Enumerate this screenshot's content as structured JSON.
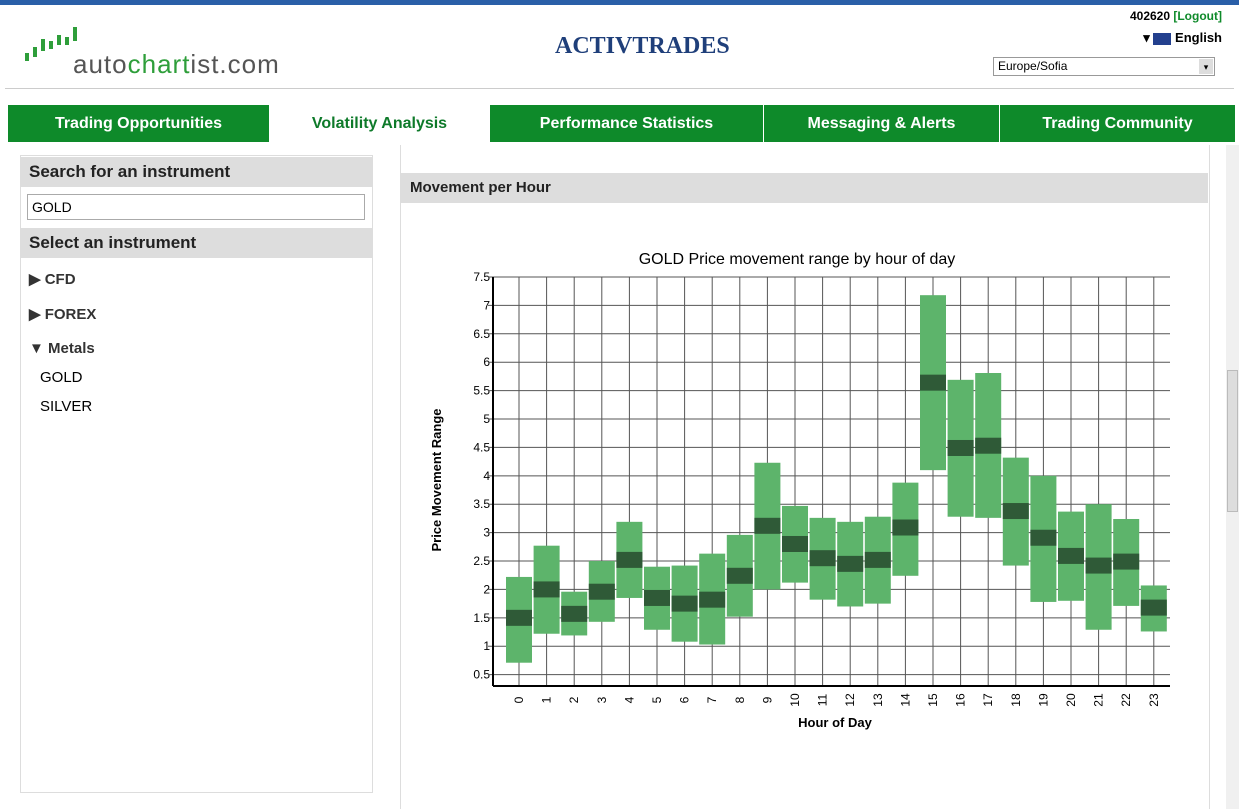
{
  "header": {
    "logo_parts": [
      "auto",
      "chart",
      "ist.com"
    ],
    "brand": "ACTIVTRADES",
    "account": "402620",
    "logout": "[Logout]",
    "language": "English",
    "timezone": "Europe/Sofia"
  },
  "tabs": [
    "Trading Opportunities",
    "Volatility Analysis",
    "Performance Statistics",
    "Messaging & Alerts",
    "Trading Community"
  ],
  "sidebar": {
    "search_title": "Search for an instrument",
    "search_value": "GOLD",
    "select_title": "Select an instrument",
    "groups": [
      "CFD",
      "FOREX",
      "Metals"
    ],
    "items": [
      "GOLD",
      "SILVER"
    ]
  },
  "panel_title": "Movement per Hour",
  "chart_data": {
    "type": "range",
    "title": "GOLD Price movement range by hour of day",
    "xlabel": "Hour of Day",
    "ylabel": "Price Movement Range",
    "categories": [
      "0",
      "1",
      "2",
      "3",
      "4",
      "5",
      "6",
      "7",
      "8",
      "9",
      "10",
      "11",
      "12",
      "13",
      "14",
      "15",
      "16",
      "17",
      "18",
      "19",
      "20",
      "21",
      "22",
      "23"
    ],
    "series": [
      {
        "name": "low",
        "color": "#5db46b",
        "values": [
          0.71,
          1.22,
          1.19,
          1.43,
          1.85,
          1.29,
          1.08,
          1.03,
          1.52,
          2.0,
          2.12,
          1.82,
          1.7,
          1.75,
          2.24,
          4.1,
          3.28,
          3.26,
          2.42,
          1.78,
          1.8,
          1.29,
          1.71,
          1.26
        ]
      },
      {
        "name": "high",
        "color": "#5db46b",
        "values": [
          2.22,
          2.77,
          1.96,
          2.5,
          3.19,
          2.4,
          2.42,
          2.63,
          2.96,
          4.23,
          3.47,
          3.26,
          3.19,
          3.28,
          3.88,
          7.18,
          5.69,
          5.81,
          4.32,
          4.0,
          3.37,
          3.5,
          3.24,
          2.07
        ]
      },
      {
        "name": "median",
        "color": "#2f5a37",
        "values": [
          1.5,
          2.0,
          1.57,
          1.96,
          2.52,
          1.85,
          1.75,
          1.82,
          2.24,
          3.12,
          2.8,
          2.55,
          2.45,
          2.52,
          3.09,
          5.64,
          4.49,
          4.53,
          3.38,
          2.91,
          2.59,
          2.42,
          2.49,
          1.68
        ]
      }
    ],
    "ylim": [
      0.3,
      7.5
    ],
    "yticks": [
      0.5,
      1,
      1.5,
      2,
      2.5,
      3,
      3.5,
      4,
      4.5,
      5,
      5.5,
      6,
      6.5,
      7,
      7.5
    ],
    "grid": true
  }
}
